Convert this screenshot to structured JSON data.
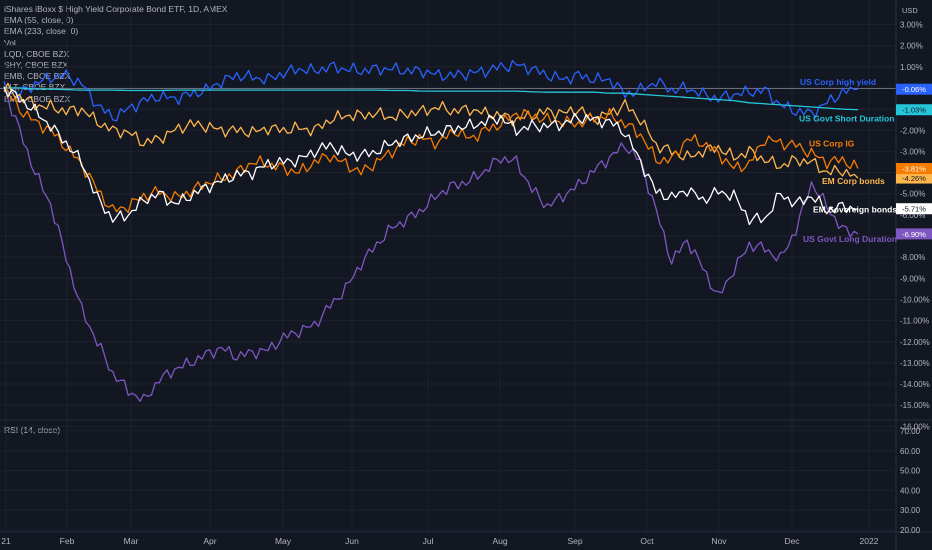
{
  "legend": {
    "title": "iShares iBoxx $ High Yield Corporate Bond ETF, 1D, AMEX",
    "lines": [
      "EMA (55, close, 0)",
      "EMA (233, close, 0)",
      "Vol",
      "LQD, CBOE BZX",
      "SHY, CBOE BZX",
      "EMB, CBOE BZX",
      "TLT, CBOE BZX",
      "EMB, CBOE BZX"
    ]
  },
  "rsi": {
    "label": "RSI (14, close)",
    "ticks": [
      "70.00",
      "60.00",
      "50.00",
      "40.00",
      "30.00",
      "20.00"
    ],
    "values": [
      70,
      60,
      50,
      40,
      30,
      20
    ],
    "ylim": [
      20,
      70
    ]
  },
  "chart_data": {
    "type": "line",
    "y_unit": "USD",
    "ylim": [
      -16,
      3
    ],
    "y_ticks": [
      {
        "v": 3,
        "label": "3.00%"
      },
      {
        "v": 2,
        "label": "2.00%"
      },
      {
        "v": 1,
        "label": "1.00%"
      },
      {
        "v": 0,
        "label": "0.00%"
      },
      {
        "v": -1,
        "label": "-1.00%"
      },
      {
        "v": -2,
        "label": "-2.00%"
      },
      {
        "v": -3,
        "label": "-3.00%"
      },
      {
        "v": -4,
        "label": "-4.00%"
      },
      {
        "v": -5,
        "label": "-5.00%"
      },
      {
        "v": -6,
        "label": "-6.00%"
      },
      {
        "v": -7,
        "label": "-7.00%"
      },
      {
        "v": -8,
        "label": "-8.00%"
      },
      {
        "v": -9,
        "label": "-9.00%"
      },
      {
        "v": -10,
        "label": "-10.00%"
      },
      {
        "v": -11,
        "label": "-11.00%"
      },
      {
        "v": -12,
        "label": "-12.00%"
      },
      {
        "v": -13,
        "label": "-13.00%"
      },
      {
        "v": -14,
        "label": "-14.00%"
      },
      {
        "v": -15,
        "label": "-15.00%"
      },
      {
        "v": -16,
        "label": "-16.00%"
      }
    ],
    "x_ticks": [
      "21",
      "Feb",
      "Mar",
      "Apr",
      "May",
      "Jun",
      "Jul",
      "Aug",
      "Sep",
      "Oct",
      "Nov",
      "Dec",
      "2022"
    ],
    "series": [
      {
        "name": "US Govt Long Duration",
        "color": "#7e57c2",
        "last": "-6.90%",
        "values": [
          0,
          -2,
          -4,
          -5.5,
          -8,
          -10.5,
          -12,
          -13.5,
          -14.3,
          -14.8,
          -13.8,
          -13.3,
          -13.0,
          -12.6,
          -12.3,
          -12.7,
          -12.5,
          -12.4,
          -11.8,
          -11.5,
          -11.2,
          -10.3,
          -9.5,
          -8.3,
          -7.4,
          -6.6,
          -6.2,
          -5.7,
          -5.0,
          -4.6,
          -4.4,
          -3.9,
          -3.3,
          -3.5,
          -4.8,
          -5.6,
          -5.1,
          -4.6,
          -3.9,
          -3.3,
          -2.7,
          -3.5,
          -5.8,
          -8.2,
          -7.2,
          -8.5,
          -9.9,
          -8.6,
          -7.4,
          -7.6,
          -8.1,
          -6.7,
          -4.5,
          -5.6,
          -6.7,
          -6.9
        ]
      },
      {
        "name": "US Corp high yield",
        "color": "#2962ff",
        "last": "-0.06%",
        "values": [
          0,
          -0.3,
          0.2,
          0.5,
          0.6,
          0.2,
          -0.8,
          -1.4,
          -1.0,
          -0.6,
          -0.4,
          -0.5,
          -0.3,
          -0.1,
          0.3,
          0.6,
          0.5,
          0.4,
          0.7,
          0.9,
          0.8,
          1.0,
          0.9,
          0.8,
          0.9,
          0.9,
          0.8,
          0.8,
          0.6,
          0.6,
          0.7,
          0.8,
          1.0,
          1.1,
          0.9,
          0.6,
          0.4,
          0.6,
          0.4,
          0.4,
          -0.3,
          -0.1,
          0.3,
          -0.1,
          0.0,
          -0.3,
          -0.5,
          -0.3,
          -0.2,
          -0.1,
          -0.8,
          -1.1,
          -1.2,
          -0.7,
          -0.2,
          -0.06
        ]
      },
      {
        "name": "US Govt Short Duration",
        "color": "#26c6da",
        "last": "-1.03%",
        "values": [
          0,
          0,
          -0.05,
          -0.05,
          -0.08,
          -0.1,
          -0.1,
          -0.1,
          -0.12,
          -0.12,
          -0.12,
          -0.1,
          -0.1,
          -0.1,
          -0.1,
          -0.1,
          -0.1,
          -0.1,
          -0.1,
          -0.1,
          -0.1,
          -0.1,
          -0.1,
          -0.1,
          -0.1,
          -0.12,
          -0.12,
          -0.15,
          -0.15,
          -0.15,
          -0.15,
          -0.15,
          -0.15,
          -0.15,
          -0.18,
          -0.2,
          -0.2,
          -0.2,
          -0.2,
          -0.25,
          -0.25,
          -0.3,
          -0.35,
          -0.4,
          -0.45,
          -0.5,
          -0.55,
          -0.6,
          -0.7,
          -0.75,
          -0.8,
          -0.85,
          -0.9,
          -0.95,
          -1.0,
          -1.03
        ]
      },
      {
        "name": "EM Corp bonds",
        "color": "#ffb74d",
        "last": "-4.26%",
        "values": [
          0,
          -0.4,
          -0.8,
          -0.9,
          -1.1,
          -1.0,
          -1.6,
          -2.0,
          -2.1,
          -2.6,
          -2.4,
          -2.0,
          -1.7,
          -1.8,
          -2.0,
          -2.0,
          -2.1,
          -1.9,
          -2.0,
          -1.9,
          -2.0,
          -1.5,
          -1.3,
          -1.3,
          -1.2,
          -1.4,
          -1.2,
          -1.1,
          -0.9,
          -1.1,
          -1.0,
          -1.2,
          -1.3,
          -1.5,
          -1.3,
          -1.1,
          -1.2,
          -1.0,
          -1.5,
          -1.2,
          -0.8,
          -1.5,
          -2.7,
          -3.0,
          -3.3,
          -3.0,
          -2.8,
          -3.3,
          -3.0,
          -3.4,
          -3.7,
          -3.4,
          -3.5,
          -4.0,
          -3.9,
          -4.26
        ]
      },
      {
        "name": "US Corp IG",
        "color": "#f57c00",
        "last": "-3.81%",
        "values": [
          0,
          -1.0,
          -1.6,
          -2.0,
          -2.8,
          -3.6,
          -4.8,
          -5.8,
          -5.6,
          -5.1,
          -4.9,
          -5.2,
          -4.9,
          -4.5,
          -4.3,
          -4.0,
          -3.5,
          -3.6,
          -3.8,
          -4.0,
          -3.5,
          -3.2,
          -3.6,
          -4.0,
          -3.5,
          -3.0,
          -2.5,
          -2.4,
          -2.6,
          -2.0,
          -2.4,
          -2.0,
          -1.7,
          -1.2,
          -1.3,
          -1.5,
          -1.6,
          -1.7,
          -1.4,
          -1.3,
          -1.7,
          -2.2,
          -3.4,
          -3.4,
          -2.4,
          -2.6,
          -3.1,
          -3.8,
          -3.6,
          -2.4,
          -2.6,
          -2.7,
          -3.1,
          -3.5,
          -3.4,
          -3.81
        ]
      },
      {
        "name": "EM Sovereign bonds",
        "color": "#ffffff",
        "last": "-5.71%",
        "values": [
          0,
          -0.5,
          -1.1,
          -1.8,
          -2.6,
          -3.5,
          -5.2,
          -6.2,
          -6.0,
          -5.3,
          -5.0,
          -5.5,
          -5.1,
          -4.7,
          -4.4,
          -4.1,
          -4.0,
          -3.6,
          -3.5,
          -3.4,
          -3.0,
          -2.7,
          -3.1,
          -3.2,
          -3.0,
          -2.6,
          -2.4,
          -2.2,
          -2.1,
          -1.9,
          -1.8,
          -1.6,
          -1.4,
          -2.0,
          -1.8,
          -1.8,
          -1.7,
          -1.4,
          -1.5,
          -1.6,
          -2.1,
          -3.5,
          -4.9,
          -5.2,
          -4.8,
          -5.3,
          -4.9,
          -5.1,
          -6.2,
          -6.2,
          -5.0,
          -5.5,
          -5.1,
          -5.8,
          -5.6,
          -5.71
        ]
      }
    ]
  }
}
